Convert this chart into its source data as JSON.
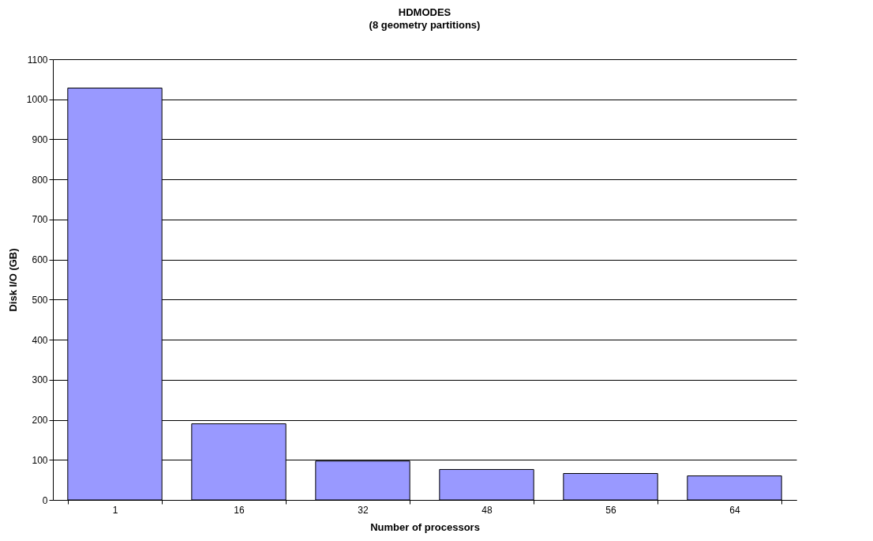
{
  "chart_data": {
    "type": "bar",
    "title": "HDMODES",
    "subtitle": "(8 geometry partitions)",
    "xlabel": "Number of processors",
    "ylabel": "Disk I/O (GB)",
    "categories": [
      "1",
      "16",
      "32",
      "48",
      "56",
      "64"
    ],
    "values": [
      1028,
      190,
      97,
      76,
      66,
      60
    ],
    "color": "#9999ff",
    "ylim": [
      0,
      1100
    ],
    "yticks": [
      0,
      100,
      200,
      300,
      400,
      500,
      600,
      700,
      800,
      900,
      1000,
      1100
    ],
    "grid": "y",
    "legend": false
  }
}
